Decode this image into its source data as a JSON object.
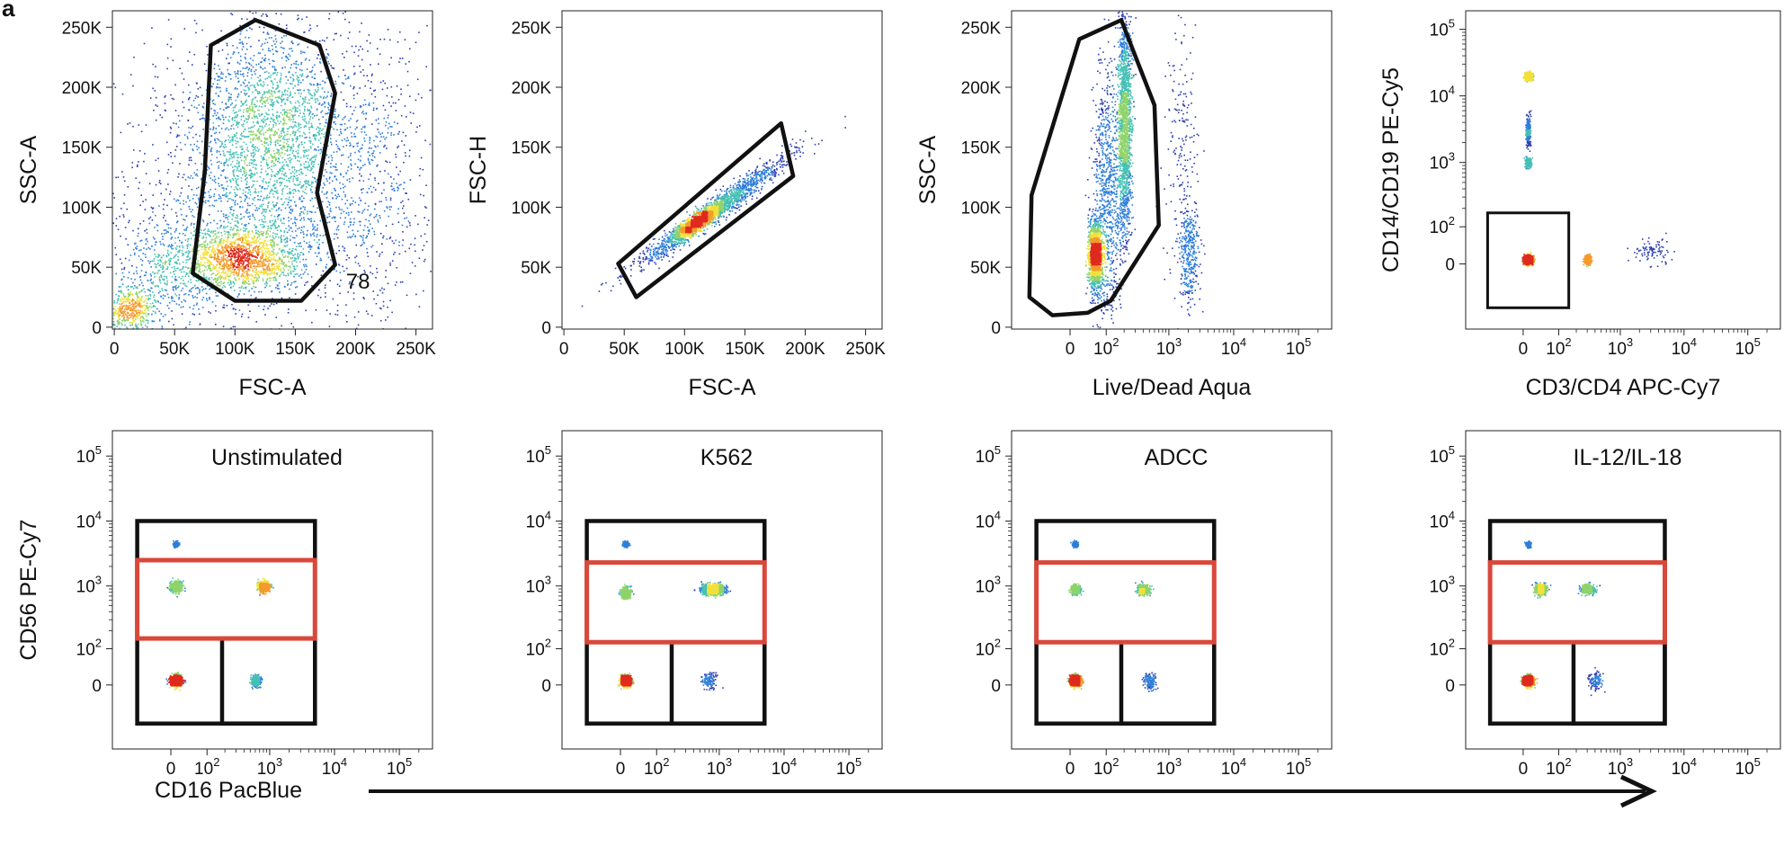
{
  "figure": {
    "panel_letter": "a",
    "bottom_xlabel": "CD16 PacBlue"
  },
  "colors": {
    "gate": "#111111",
    "nk_gate": "#d9483b",
    "density_scale": [
      "#2c3fb0",
      "#2f7ed8",
      "#45c0b4",
      "#8fd36a",
      "#f2e03a",
      "#f59a2c",
      "#e02a1e"
    ]
  },
  "chart_data": [
    {
      "type": "scatter",
      "id": "p1",
      "title": "",
      "xlabel": "FSC-A",
      "ylabel": "SSC-A",
      "x_scale": "linear",
      "y_scale": "linear",
      "xlim": [
        0,
        262144
      ],
      "ylim": [
        0,
        262144
      ],
      "x_ticks": [
        {
          "v": 0,
          "label": "0"
        },
        {
          "v": 50000,
          "label": "50K"
        },
        {
          "v": 100000,
          "label": "100K"
        },
        {
          "v": 150000,
          "label": "150K"
        },
        {
          "v": 200000,
          "label": "200K"
        },
        {
          "v": 250000,
          "label": "250K"
        }
      ],
      "y_ticks": [
        {
          "v": 0,
          "label": "0"
        },
        {
          "v": 50000,
          "label": "50K"
        },
        {
          "v": 100000,
          "label": "100K"
        },
        {
          "v": 150000,
          "label": "150K"
        },
        {
          "v": 200000,
          "label": "200K"
        },
        {
          "v": 250000,
          "label": "250K"
        }
      ],
      "populations": [
        {
          "x": 105000,
          "y": 58000,
          "sx": 25000,
          "sy": 13000,
          "n": 1500
        },
        {
          "x": 125000,
          "y": 165000,
          "sx": 30000,
          "sy": 45000,
          "n": 1800
        },
        {
          "x": 130000,
          "y": 110000,
          "sx": 65000,
          "sy": 60000,
          "n": 1500
        },
        {
          "x": 12000,
          "y": 14000,
          "sx": 9000,
          "sy": 9000,
          "n": 400
        },
        {
          "x": 40000,
          "y": 45000,
          "sx": 22000,
          "sy": 28000,
          "n": 500
        },
        {
          "x": 200000,
          "y": 140000,
          "sx": 35000,
          "sy": 60000,
          "n": 600
        }
      ],
      "gates": [
        {
          "kind": "polygon",
          "color": "gate",
          "points": [
            [
              80000,
              235000
            ],
            [
              117000,
              256000
            ],
            [
              170000,
              235000
            ],
            [
              183000,
              195000
            ],
            [
              168000,
              112000
            ],
            [
              183000,
              52000
            ],
            [
              155000,
              22000
            ],
            [
              100000,
              22000
            ],
            [
              65000,
              45000
            ],
            [
              75000,
              130000
            ]
          ]
        }
      ],
      "annotations": [
        {
          "text": "78",
          "x": 192000,
          "y": 38000
        }
      ]
    },
    {
      "type": "scatter",
      "id": "p2",
      "title": "",
      "xlabel": "FSC-A",
      "ylabel": "FSC-H",
      "x_scale": "linear",
      "y_scale": "linear",
      "xlim": [
        0,
        262144
      ],
      "ylim": [
        0,
        262144
      ],
      "x_ticks": [
        {
          "v": 0,
          "label": "0"
        },
        {
          "v": 50000,
          "label": "50K"
        },
        {
          "v": 100000,
          "label": "100K"
        },
        {
          "v": 150000,
          "label": "150K"
        },
        {
          "v": 200000,
          "label": "200K"
        },
        {
          "v": 250000,
          "label": "250K"
        }
      ],
      "y_ticks": [
        {
          "v": 0,
          "label": "0"
        },
        {
          "v": 50000,
          "label": "50K"
        },
        {
          "v": 100000,
          "label": "100K"
        },
        {
          "v": 150000,
          "label": "150K"
        },
        {
          "v": 200000,
          "label": "200K"
        },
        {
          "v": 250000,
          "label": "250K"
        }
      ],
      "populations": [
        {
          "x": 110000,
          "y": 88000,
          "sx": 9000,
          "sy": 6000,
          "n": 1400,
          "rho": 0.9
        },
        {
          "x": 120000,
          "y": 95000,
          "sx": 30000,
          "sy": 22000,
          "n": 1800,
          "rho": 0.97
        }
      ],
      "gates": [
        {
          "kind": "polygon",
          "color": "gate",
          "points": [
            [
              45000,
              53000
            ],
            [
              180000,
              170000
            ],
            [
              190000,
              126000
            ],
            [
              60000,
              25000
            ]
          ]
        }
      ]
    },
    {
      "type": "scatter",
      "id": "p3",
      "title": "",
      "xlabel": "Live/Dead Aqua",
      "ylabel": "SSC-A",
      "x_scale": "biexp",
      "y_scale": "linear",
      "xlim": [
        -150,
        262144
      ],
      "ylim": [
        0,
        262144
      ],
      "x_ticks": [
        {
          "v": 0,
          "label": "0"
        },
        {
          "v": 100,
          "label": "10",
          "sup": "2"
        },
        {
          "v": 1000,
          "label": "10",
          "sup": "3"
        },
        {
          "v": 10000,
          "label": "10",
          "sup": "4"
        },
        {
          "v": 100000,
          "label": "10",
          "sup": "5"
        }
      ],
      "y_ticks": [
        {
          "v": 0,
          "label": "0"
        },
        {
          "v": 50000,
          "label": "50K"
        },
        {
          "v": 100000,
          "label": "100K"
        },
        {
          "v": 150000,
          "label": "150K"
        },
        {
          "v": 200000,
          "label": "200K"
        },
        {
          "v": 250000,
          "label": "250K"
        }
      ],
      "populations": [
        {
          "x": 60,
          "y": 60000,
          "sx": 0.12,
          "sy": 14000,
          "n": 1500
        },
        {
          "x": 200,
          "y": 170000,
          "sx": 0.12,
          "sy": 45000,
          "n": 1700
        },
        {
          "x": 100,
          "y": 110000,
          "sx": 0.25,
          "sy": 55000,
          "n": 900
        },
        {
          "x": 2000,
          "y": 60000,
          "sx": 0.18,
          "sy": 22000,
          "n": 350
        },
        {
          "x": 1500,
          "y": 150000,
          "sx": 0.3,
          "sy": 60000,
          "n": 200
        }
      ],
      "gates": [
        {
          "kind": "polygon",
          "color": "gate",
          "points": [
            [
              20,
              240000
            ],
            [
              180,
              256000
            ],
            [
              600,
              185000
            ],
            [
              700,
              85000
            ],
            [
              120,
              22000
            ],
            [
              40,
              12000
            ],
            [
              -40,
              10000
            ],
            [
              -120,
              25000
            ],
            [
              -110,
              110000
            ]
          ]
        }
      ]
    },
    {
      "type": "scatter",
      "id": "p4",
      "title": "",
      "xlabel": "CD3/CD4 APC-Cy7",
      "ylabel": "CD14/CD19 PE-Cy5",
      "x_scale": "biexp",
      "y_scale": "biexp",
      "xlim": [
        -150,
        262144
      ],
      "ylim": [
        -150,
        140000
      ],
      "x_ticks": [
        {
          "v": 0,
          "label": "0"
        },
        {
          "v": 100,
          "label": "10",
          "sup": "2"
        },
        {
          "v": 1000,
          "label": "10",
          "sup": "3"
        },
        {
          "v": 10000,
          "label": "10",
          "sup": "4"
        },
        {
          "v": 100000,
          "label": "10",
          "sup": "5"
        }
      ],
      "y_ticks": [
        {
          "v": 0,
          "label": "0"
        },
        {
          "v": 100,
          "label": "10",
          "sup": "2"
        },
        {
          "v": 1000,
          "label": "10",
          "sup": "3"
        },
        {
          "v": 10000,
          "label": "10",
          "sup": "4"
        },
        {
          "v": 100000,
          "label": "10",
          "sup": "5"
        }
      ],
      "populations": [
        {
          "x": 10,
          "y": 20000,
          "sx": 0.06,
          "sy": 0.06,
          "n": 700
        },
        {
          "x": 10,
          "y": 1000,
          "sx": 0.05,
          "sy": 0.08,
          "n": 300
        },
        {
          "x": 10,
          "y": 10,
          "sx": 0.08,
          "sy": 0.07,
          "n": 1300
        },
        {
          "x": 300,
          "y": 10,
          "sx": 0.05,
          "sy": 0.07,
          "n": 900
        },
        {
          "x": 10,
          "y": 3000,
          "sx": 0.04,
          "sy": 0.25,
          "n": 300
        },
        {
          "x": 3000,
          "y": 30,
          "sx": 0.35,
          "sy": 0.2,
          "n": 90
        }
      ],
      "gates": [
        {
          "kind": "rect",
          "color": "gate",
          "x0": -100,
          "x1": 150,
          "y0": -130,
          "y1": 170
        }
      ]
    },
    {
      "type": "scatter",
      "id": "p5",
      "title": "Unstimulated",
      "xlabel": "",
      "ylabel": "CD56 PE-Cy7",
      "x_scale": "biexp",
      "y_scale": "biexp",
      "xlim": [
        -150,
        262144
      ],
      "ylim": [
        -150,
        180000
      ],
      "x_ticks": [
        {
          "v": 0,
          "label": "0"
        },
        {
          "v": 100,
          "label": "10",
          "sup": "2"
        },
        {
          "v": 1000,
          "label": "10",
          "sup": "3"
        },
        {
          "v": 10000,
          "label": "10",
          "sup": "4"
        },
        {
          "v": 100000,
          "label": "10",
          "sup": "5"
        }
      ],
      "y_ticks": [
        {
          "v": 0,
          "label": "0"
        },
        {
          "v": 100,
          "label": "10",
          "sup": "2"
        },
        {
          "v": 1000,
          "label": "10",
          "sup": "3"
        },
        {
          "v": 10000,
          "label": "10",
          "sup": "4"
        },
        {
          "v": 100000,
          "label": "10",
          "sup": "5"
        }
      ],
      "populations": [
        {
          "x": 10,
          "y": 10,
          "sx": 0.09,
          "sy": 0.09,
          "n": 1300
        },
        {
          "x": 800,
          "y": 1000,
          "sx": 0.09,
          "sy": 0.08,
          "n": 900
        },
        {
          "x": 10,
          "y": 1000,
          "sx": 0.1,
          "sy": 0.09,
          "n": 500
        },
        {
          "x": 10,
          "y": 4500,
          "sx": 0.05,
          "sy": 0.05,
          "n": 150
        },
        {
          "x": 600,
          "y": 10,
          "sx": 0.08,
          "sy": 0.1,
          "n": 250
        }
      ],
      "gates": [
        {
          "kind": "rect",
          "color": "gate",
          "x0": -90,
          "x1": 5000,
          "y0": -110,
          "y1": 10000
        },
        {
          "kind": "rect",
          "color": "gate",
          "x0": 180,
          "x1": 5000,
          "y0": -110,
          "y1": 150
        },
        {
          "kind": "rect",
          "color": "nk_gate",
          "x0": -90,
          "x1": 5000,
          "y0": 150,
          "y1": 2500
        }
      ]
    },
    {
      "type": "scatter",
      "id": "p6",
      "title": "K562",
      "xlabel": "",
      "ylabel": "",
      "x_scale": "biexp",
      "y_scale": "biexp",
      "xlim": [
        -150,
        262144
      ],
      "ylim": [
        -150,
        180000
      ],
      "x_ticks": [
        {
          "v": 0,
          "label": "0"
        },
        {
          "v": 100,
          "label": "10",
          "sup": "2"
        },
        {
          "v": 1000,
          "label": "10",
          "sup": "3"
        },
        {
          "v": 10000,
          "label": "10",
          "sup": "4"
        },
        {
          "v": 100000,
          "label": "10",
          "sup": "5"
        }
      ],
      "y_ticks": [
        {
          "v": 0,
          "label": "0"
        },
        {
          "v": 100,
          "label": "10",
          "sup": "2"
        },
        {
          "v": 1000,
          "label": "10",
          "sup": "3"
        },
        {
          "v": 10000,
          "label": "10",
          "sup": "4"
        },
        {
          "v": 100000,
          "label": "10",
          "sup": "5"
        }
      ],
      "populations": [
        {
          "x": 10,
          "y": 10,
          "sx": 0.09,
          "sy": 0.09,
          "n": 1300
        },
        {
          "x": 10,
          "y": 800,
          "sx": 0.08,
          "sy": 0.09,
          "n": 550
        },
        {
          "x": 800,
          "y": 900,
          "sx": 0.2,
          "sy": 0.09,
          "n": 800
        },
        {
          "x": 10,
          "y": 4500,
          "sx": 0.05,
          "sy": 0.05,
          "n": 140
        },
        {
          "x": 700,
          "y": 10,
          "sx": 0.15,
          "sy": 0.15,
          "n": 120
        }
      ],
      "gates": [
        {
          "kind": "rect",
          "color": "gate",
          "x0": -90,
          "x1": 5000,
          "y0": -110,
          "y1": 10000
        },
        {
          "kind": "rect",
          "color": "gate",
          "x0": 180,
          "x1": 5000,
          "y0": -110,
          "y1": 130
        },
        {
          "kind": "rect",
          "color": "nk_gate",
          "x0": -90,
          "x1": 5000,
          "y0": 130,
          "y1": 2300
        }
      ]
    },
    {
      "type": "scatter",
      "id": "p7",
      "title": "ADCC",
      "xlabel": "",
      "ylabel": "",
      "x_scale": "biexp",
      "y_scale": "biexp",
      "xlim": [
        -150,
        262144
      ],
      "ylim": [
        -150,
        180000
      ],
      "x_ticks": [
        {
          "v": 0,
          "label": "0"
        },
        {
          "v": 100,
          "label": "10",
          "sup": "2"
        },
        {
          "v": 1000,
          "label": "10",
          "sup": "3"
        },
        {
          "v": 10000,
          "label": "10",
          "sup": "4"
        },
        {
          "v": 100000,
          "label": "10",
          "sup": "5"
        }
      ],
      "y_ticks": [
        {
          "v": 0,
          "label": "0"
        },
        {
          "v": 100,
          "label": "10",
          "sup": "2"
        },
        {
          "v": 1000,
          "label": "10",
          "sup": "3"
        },
        {
          "v": 10000,
          "label": "10",
          "sup": "4"
        },
        {
          "v": 100000,
          "label": "10",
          "sup": "5"
        }
      ],
      "populations": [
        {
          "x": 10,
          "y": 10,
          "sx": 0.09,
          "sy": 0.09,
          "n": 1300
        },
        {
          "x": 10,
          "y": 900,
          "sx": 0.08,
          "sy": 0.08,
          "n": 550
        },
        {
          "x": 400,
          "y": 900,
          "sx": 0.1,
          "sy": 0.08,
          "n": 600
        },
        {
          "x": 10,
          "y": 4500,
          "sx": 0.05,
          "sy": 0.05,
          "n": 140
        },
        {
          "x": 500,
          "y": 10,
          "sx": 0.12,
          "sy": 0.15,
          "n": 140
        }
      ],
      "gates": [
        {
          "kind": "rect",
          "color": "gate",
          "x0": -90,
          "x1": 5000,
          "y0": -110,
          "y1": 10000
        },
        {
          "kind": "rect",
          "color": "gate",
          "x0": 180,
          "x1": 5000,
          "y0": -110,
          "y1": 130
        },
        {
          "kind": "rect",
          "color": "nk_gate",
          "x0": -90,
          "x1": 5000,
          "y0": 130,
          "y1": 2300
        }
      ]
    },
    {
      "type": "scatter",
      "id": "p8",
      "title": "IL-12/IL-18",
      "xlabel": "",
      "ylabel": "",
      "x_scale": "biexp",
      "y_scale": "biexp",
      "xlim": [
        -150,
        262144
      ],
      "ylim": [
        -150,
        180000
      ],
      "x_ticks": [
        {
          "v": 0,
          "label": "0"
        },
        {
          "v": 100,
          "label": "10",
          "sup": "2"
        },
        {
          "v": 1000,
          "label": "10",
          "sup": "3"
        },
        {
          "v": 10000,
          "label": "10",
          "sup": "4"
        },
        {
          "v": 100000,
          "label": "10",
          "sup": "5"
        }
      ],
      "y_ticks": [
        {
          "v": 0,
          "label": "0"
        },
        {
          "v": 100,
          "label": "10",
          "sup": "2"
        },
        {
          "v": 1000,
          "label": "10",
          "sup": "3"
        },
        {
          "v": 10000,
          "label": "10",
          "sup": "4"
        },
        {
          "v": 100000,
          "label": "10",
          "sup": "5"
        }
      ],
      "populations": [
        {
          "x": 10,
          "y": 10,
          "sx": 0.09,
          "sy": 0.09,
          "n": 1300
        },
        {
          "x": 40,
          "y": 900,
          "sx": 0.09,
          "sy": 0.09,
          "n": 650
        },
        {
          "x": 300,
          "y": 900,
          "sx": 0.12,
          "sy": 0.08,
          "n": 450
        },
        {
          "x": 10,
          "y": 4500,
          "sx": 0.05,
          "sy": 0.05,
          "n": 140
        },
        {
          "x": 400,
          "y": 10,
          "sx": 0.12,
          "sy": 0.15,
          "n": 120
        }
      ],
      "gates": [
        {
          "kind": "rect",
          "color": "gate",
          "x0": -90,
          "x1": 5000,
          "y0": -110,
          "y1": 10000
        },
        {
          "kind": "rect",
          "color": "gate",
          "x0": 180,
          "x1": 5000,
          "y0": -110,
          "y1": 130
        },
        {
          "kind": "rect",
          "color": "nk_gate",
          "x0": -90,
          "x1": 5000,
          "y0": 130,
          "y1": 2300
        }
      ]
    }
  ]
}
